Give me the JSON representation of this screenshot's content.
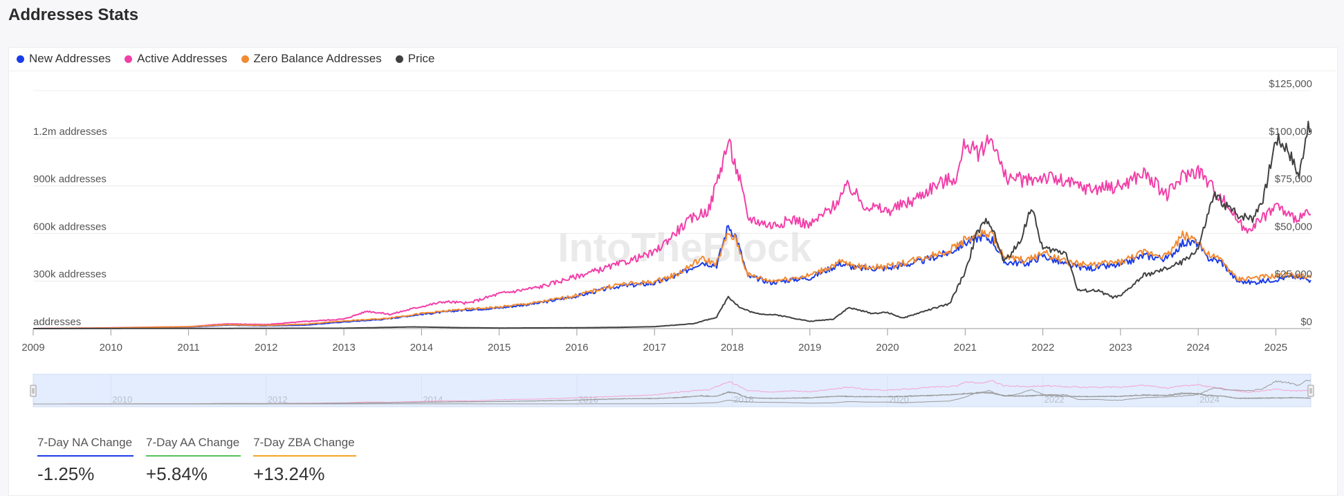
{
  "page": {
    "title": "Addresses Stats"
  },
  "legend": [
    {
      "label": "New Addresses",
      "color": "#1a3ce8"
    },
    {
      "label": "Active Addresses",
      "color": "#f23fa8"
    },
    {
      "label": "Zero Balance Addresses",
      "color": "#f28a32"
    },
    {
      "label": "Price",
      "color": "#404040"
    }
  ],
  "watermark": "IntoTheBlock",
  "metrics": [
    {
      "label": "7-Day NA Change",
      "value": "-1.25%",
      "color": "#1f3de6"
    },
    {
      "label": "7-Day AA Change",
      "value": "+5.84%",
      "color": "#56c15a"
    },
    {
      "label": "7-Day ZBA Change",
      "value": "+13.24%",
      "color": "#f5a524"
    }
  ],
  "chart_data": {
    "type": "line",
    "x_ticks": [
      "2009",
      "2010",
      "2011",
      "2012",
      "2013",
      "2014",
      "2015",
      "2016",
      "2017",
      "2018",
      "2019",
      "2020",
      "2021",
      "2022",
      "2023",
      "2024",
      "2025"
    ],
    "navigator_ticks": [
      "2010",
      "2012",
      "2014",
      "2016",
      "2018",
      "2020",
      "2022",
      "2024"
    ],
    "y_left_ticks": [
      "addresses",
      "300k addresses",
      "600k addresses",
      "900k addresses",
      "1.2m addresses"
    ],
    "y_left_range": [
      0,
      1500000
    ],
    "y_right_ticks": [
      "$0",
      "$25,000",
      "$50,000",
      "$75,000",
      "$100,000",
      "$125,000"
    ],
    "y_right_range": [
      0,
      125000
    ],
    "grid": true,
    "legend_position": "top-left",
    "series": [
      {
        "name": "New Addresses",
        "axis": "left",
        "color": "#1a3ce8",
        "points": [
          [
            2009.0,
            0
          ],
          [
            2010.0,
            3000
          ],
          [
            2011.0,
            10000
          ],
          [
            2011.5,
            22000
          ],
          [
            2012.0,
            18000
          ],
          [
            2012.5,
            22000
          ],
          [
            2013.0,
            42000
          ],
          [
            2013.5,
            58000
          ],
          [
            2014.0,
            90000
          ],
          [
            2014.5,
            115000
          ],
          [
            2015.0,
            130000
          ],
          [
            2015.5,
            160000
          ],
          [
            2016.0,
            205000
          ],
          [
            2016.5,
            265000
          ],
          [
            2017.0,
            285000
          ],
          [
            2017.3,
            335000
          ],
          [
            2017.6,
            420000
          ],
          [
            2017.8,
            400000
          ],
          [
            2017.95,
            650000
          ],
          [
            2018.05,
            580000
          ],
          [
            2018.2,
            330000
          ],
          [
            2018.5,
            290000
          ],
          [
            2018.8,
            310000
          ],
          [
            2019.0,
            320000
          ],
          [
            2019.4,
            410000
          ],
          [
            2019.6,
            380000
          ],
          [
            2020.0,
            380000
          ],
          [
            2020.4,
            420000
          ],
          [
            2020.8,
            480000
          ],
          [
            2021.0,
            540000
          ],
          [
            2021.2,
            580000
          ],
          [
            2021.35,
            560000
          ],
          [
            2021.5,
            420000
          ],
          [
            2021.8,
            410000
          ],
          [
            2022.0,
            460000
          ],
          [
            2022.3,
            400000
          ],
          [
            2022.6,
            380000
          ],
          [
            2023.0,
            400000
          ],
          [
            2023.3,
            460000
          ],
          [
            2023.6,
            440000
          ],
          [
            2023.8,
            540000
          ],
          [
            2024.0,
            540000
          ],
          [
            2024.1,
            450000
          ],
          [
            2024.3,
            420000
          ],
          [
            2024.5,
            300000
          ],
          [
            2024.7,
            290000
          ],
          [
            2025.0,
            310000
          ],
          [
            2025.2,
            330000
          ],
          [
            2025.45,
            305000
          ]
        ]
      },
      {
        "name": "Active Addresses",
        "axis": "left",
        "color": "#f23fa8",
        "points": [
          [
            2009.0,
            0
          ],
          [
            2010.0,
            5000
          ],
          [
            2011.0,
            12000
          ],
          [
            2011.5,
            30000
          ],
          [
            2012.0,
            25000
          ],
          [
            2012.5,
            45000
          ],
          [
            2013.0,
            60000
          ],
          [
            2013.3,
            110000
          ],
          [
            2013.6,
            90000
          ],
          [
            2014.0,
            140000
          ],
          [
            2014.3,
            170000
          ],
          [
            2014.6,
            160000
          ],
          [
            2015.0,
            220000
          ],
          [
            2015.5,
            260000
          ],
          [
            2016.0,
            330000
          ],
          [
            2016.5,
            400000
          ],
          [
            2017.0,
            480000
          ],
          [
            2017.3,
            620000
          ],
          [
            2017.5,
            700000
          ],
          [
            2017.7,
            750000
          ],
          [
            2017.95,
            1180000
          ],
          [
            2018.1,
            930000
          ],
          [
            2018.2,
            700000
          ],
          [
            2018.5,
            650000
          ],
          [
            2018.8,
            690000
          ],
          [
            2019.0,
            650000
          ],
          [
            2019.3,
            770000
          ],
          [
            2019.5,
            900000
          ],
          [
            2019.7,
            780000
          ],
          [
            2020.0,
            740000
          ],
          [
            2020.3,
            800000
          ],
          [
            2020.6,
            900000
          ],
          [
            2020.9,
            960000
          ],
          [
            2021.0,
            1180000
          ],
          [
            2021.15,
            1100000
          ],
          [
            2021.35,
            1210000
          ],
          [
            2021.5,
            960000
          ],
          [
            2021.8,
            930000
          ],
          [
            2022.0,
            960000
          ],
          [
            2022.3,
            920000
          ],
          [
            2022.6,
            880000
          ],
          [
            2023.0,
            900000
          ],
          [
            2023.3,
            980000
          ],
          [
            2023.6,
            840000
          ],
          [
            2023.8,
            960000
          ],
          [
            2024.0,
            1000000
          ],
          [
            2024.2,
            880000
          ],
          [
            2024.4,
            760000
          ],
          [
            2024.6,
            620000
          ],
          [
            2024.8,
            680000
          ],
          [
            2025.0,
            780000
          ],
          [
            2025.2,
            700000
          ],
          [
            2025.45,
            720000
          ]
        ]
      },
      {
        "name": "Zero Balance Addresses",
        "axis": "left",
        "color": "#f28a32",
        "points": [
          [
            2009.0,
            0
          ],
          [
            2010.0,
            4000
          ],
          [
            2011.0,
            12000
          ],
          [
            2011.5,
            25000
          ],
          [
            2012.0,
            20000
          ],
          [
            2012.5,
            28000
          ],
          [
            2013.0,
            48000
          ],
          [
            2013.5,
            62000
          ],
          [
            2014.0,
            95000
          ],
          [
            2014.5,
            120000
          ],
          [
            2015.0,
            135000
          ],
          [
            2015.5,
            165000
          ],
          [
            2016.0,
            210000
          ],
          [
            2016.5,
            275000
          ],
          [
            2017.0,
            295000
          ],
          [
            2017.3,
            345000
          ],
          [
            2017.6,
            440000
          ],
          [
            2017.8,
            410000
          ],
          [
            2017.95,
            600000
          ],
          [
            2018.05,
            560000
          ],
          [
            2018.2,
            340000
          ],
          [
            2018.5,
            300000
          ],
          [
            2018.8,
            320000
          ],
          [
            2019.0,
            335000
          ],
          [
            2019.4,
            420000
          ],
          [
            2019.6,
            390000
          ],
          [
            2020.0,
            390000
          ],
          [
            2020.4,
            440000
          ],
          [
            2020.8,
            495000
          ],
          [
            2021.0,
            560000
          ],
          [
            2021.2,
            600000
          ],
          [
            2021.35,
            590000
          ],
          [
            2021.5,
            450000
          ],
          [
            2021.8,
            430000
          ],
          [
            2022.0,
            480000
          ],
          [
            2022.3,
            420000
          ],
          [
            2022.6,
            400000
          ],
          [
            2023.0,
            420000
          ],
          [
            2023.3,
            480000
          ],
          [
            2023.6,
            460000
          ],
          [
            2023.8,
            590000
          ],
          [
            2024.0,
            560000
          ],
          [
            2024.1,
            470000
          ],
          [
            2024.3,
            430000
          ],
          [
            2024.5,
            310000
          ],
          [
            2024.7,
            320000
          ],
          [
            2025.0,
            330000
          ],
          [
            2025.2,
            340000
          ],
          [
            2025.45,
            320000
          ]
        ]
      },
      {
        "name": "Price",
        "axis": "right",
        "color": "#404040",
        "points": [
          [
            2009.0,
            0
          ],
          [
            2013.0,
            200
          ],
          [
            2013.9,
            900
          ],
          [
            2014.5,
            500
          ],
          [
            2015.0,
            300
          ],
          [
            2016.0,
            430
          ],
          [
            2016.5,
            650
          ],
          [
            2017.0,
            1000
          ],
          [
            2017.5,
            2600
          ],
          [
            2017.8,
            6000
          ],
          [
            2017.95,
            17000
          ],
          [
            2018.1,
            11000
          ],
          [
            2018.3,
            8000
          ],
          [
            2018.6,
            7000
          ],
          [
            2019.0,
            3800
          ],
          [
            2019.3,
            5000
          ],
          [
            2019.5,
            11000
          ],
          [
            2019.8,
            8000
          ],
          [
            2020.0,
            8500
          ],
          [
            2020.2,
            5500
          ],
          [
            2020.5,
            9500
          ],
          [
            2020.8,
            13000
          ],
          [
            2021.0,
            30000
          ],
          [
            2021.15,
            50000
          ],
          [
            2021.3,
            58000
          ],
          [
            2021.5,
            35000
          ],
          [
            2021.7,
            45000
          ],
          [
            2021.85,
            64000
          ],
          [
            2022.0,
            42000
          ],
          [
            2022.3,
            40000
          ],
          [
            2022.45,
            20000
          ],
          [
            2022.7,
            20000
          ],
          [
            2022.9,
            16500
          ],
          [
            2023.0,
            17000
          ],
          [
            2023.3,
            28000
          ],
          [
            2023.5,
            30000
          ],
          [
            2023.8,
            35000
          ],
          [
            2024.0,
            42000
          ],
          [
            2024.2,
            70000
          ],
          [
            2024.5,
            60000
          ],
          [
            2024.7,
            58000
          ],
          [
            2024.85,
            70000
          ],
          [
            2025.0,
            100000
          ],
          [
            2025.15,
            95000
          ],
          [
            2025.3,
            80000
          ],
          [
            2025.4,
            105000
          ],
          [
            2025.45,
            104000
          ]
        ]
      }
    ]
  }
}
